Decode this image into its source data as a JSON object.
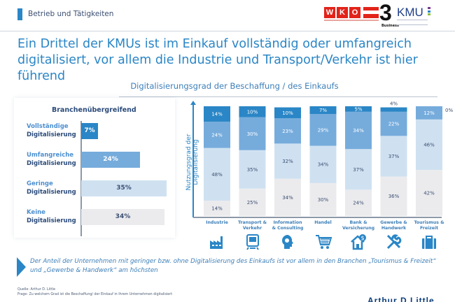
{
  "header": {
    "section_label": "Betrieb und Tätigkeiten",
    "logos": {
      "wko_letters": [
        "W",
        "K",
        "O"
      ],
      "three": "3",
      "three_sub": "Business",
      "kmu": "KMU"
    },
    "headline": "Ein Drittel der KMUs ist im Einkauf vollständig oder umfangreich digitalisiert, vor allem die Industrie und Transport/Verkehr ist hier führend"
  },
  "colors": {
    "accent": "#2a86c6",
    "full": "#2a86c6",
    "extensive": "#76acdc",
    "low": "#cfe1f1",
    "none": "#ebebed",
    "text_dark": "#2b4b7a"
  },
  "chart_data": [
    {
      "type": "bar",
      "orientation": "horizontal",
      "title": "Branchenübergreifend",
      "categories": [
        [
          "Vollständige",
          "Digitalisierung"
        ],
        [
          "Umfangreiche",
          "Digitalisierung"
        ],
        [
          "Geringe",
          "Digitalisierung"
        ],
        [
          "Keine",
          "Digitalisierung"
        ]
      ],
      "values": [
        7,
        24,
        35,
        34
      ],
      "labels": [
        "7%",
        "24%",
        "35%",
        "34%"
      ],
      "unit": "%",
      "xlim": [
        0,
        35
      ]
    },
    {
      "type": "bar",
      "stacked": true,
      "title": "Digitalisierungsgrad der Beschaffung / des Einkaufs",
      "ylabel": "Nutzungsgrad der Digitalisierung",
      "xlabel": "",
      "ylim": [
        0,
        100
      ],
      "categories": [
        [
          "Industrie"
        ],
        [
          "Transport &",
          "Verkehr"
        ],
        [
          "Information",
          "& Consulting"
        ],
        [
          "Handel"
        ],
        [
          "Bank &",
          "Versicherung"
        ],
        [
          "Gewerbe &",
          "Handwerk"
        ],
        [
          "Tourismus &",
          "Freizeit"
        ]
      ],
      "category_icons": [
        "factory-icon",
        "train-icon",
        "head-gear-icon",
        "shopping-cart-icon",
        "house-dollar-icon",
        "tools-icon",
        "suitcase-icon"
      ],
      "series": [
        {
          "name": "Keine Digitalisierung",
          "color": "#ebebed",
          "label_color": "#3b4f72",
          "values": [
            14,
            25,
            34,
            30,
            24,
            36,
            42
          ]
        },
        {
          "name": "Geringe Digitalisierung",
          "color": "#cfe1f1",
          "label_color": "#3b4f72",
          "values": [
            48,
            35,
            32,
            34,
            37,
            37,
            46
          ]
        },
        {
          "name": "Umfangreiche Digitalisierung",
          "color": "#76acdc",
          "label_color": "#ffffff",
          "values": [
            24,
            30,
            23,
            29,
            34,
            22,
            12
          ]
        },
        {
          "name": "Vollständige Digitalisierung",
          "color": "#2a86c6",
          "label_color": "#ffffff",
          "values": [
            14,
            10,
            10,
            7,
            5,
            4,
            0
          ]
        }
      ],
      "annotations": [
        {
          "category_index": 5,
          "series_index": 3,
          "text": "4%",
          "position": "above"
        },
        {
          "category_index": 6,
          "series_index": 3,
          "text": "0%",
          "position": "right"
        }
      ]
    }
  ],
  "callout": {
    "text": "Der Anteil der Unternehmen mit geringer bzw. ohne Digitalisierung des Einkaufs ist vor allem in den Branchen „Tourismus & Freizeit“ und  „Gewerbe & Handwerk“ am höchsten"
  },
  "footer": {
    "source": "Quelle: Arthur D. Little",
    "question": "Frage: Zu welchem Grad ist die Beschaffung/ der Einkauf in Ihrem Unternehmen digitalisiert",
    "brand": "Arthur D Little"
  }
}
